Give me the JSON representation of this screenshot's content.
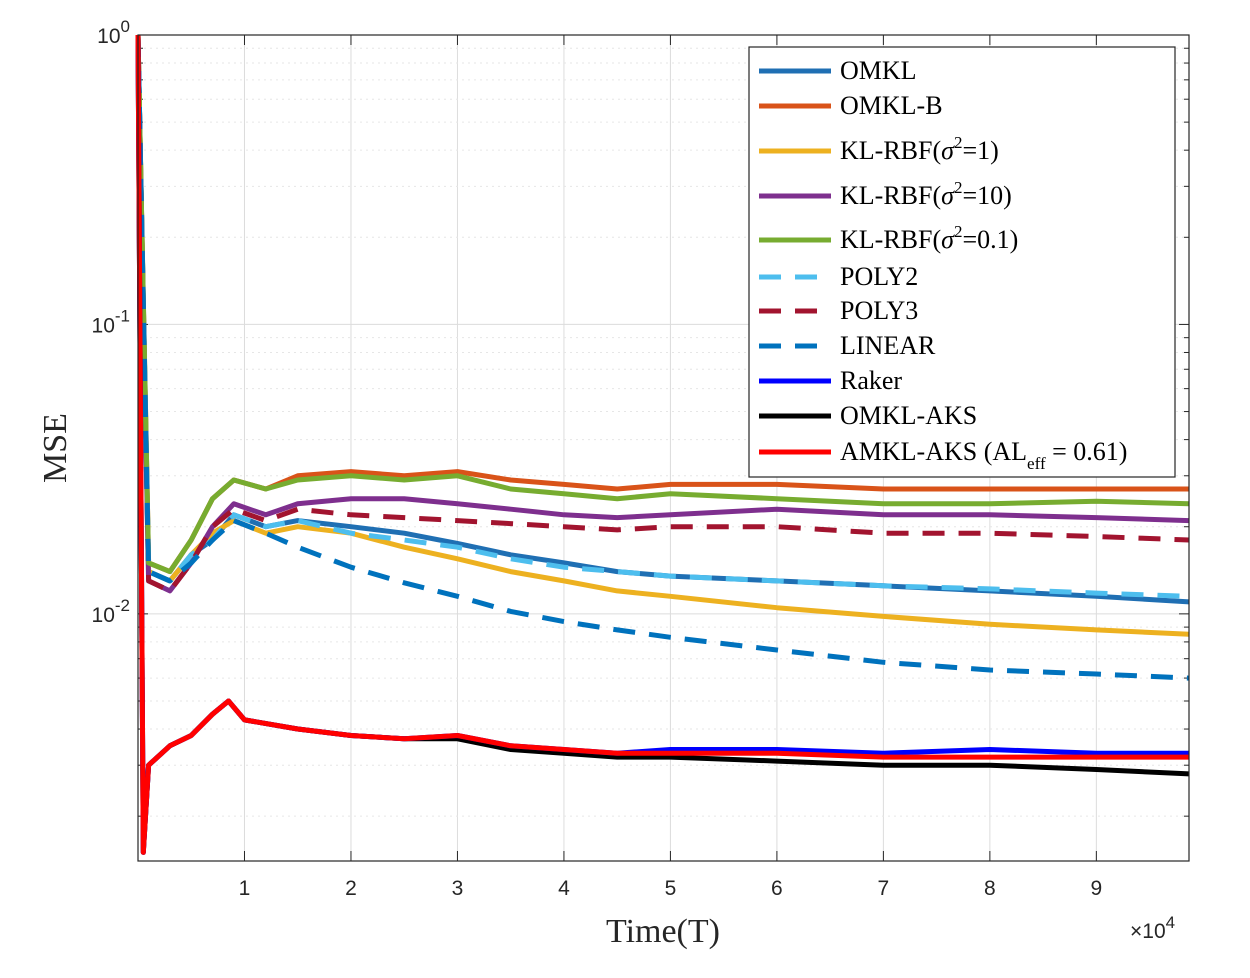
{
  "chart_data": {
    "type": "line",
    "title": "",
    "xlabel": "Time(T)",
    "ylabel": "MSE",
    "x_multiplier_label": "×10",
    "x_multiplier_exponent": "4",
    "xscale": "linear",
    "yscale": "log",
    "xlim": [
      0,
      9.87
    ],
    "ylim": [
      0.0014,
      1
    ],
    "xticks": [
      1,
      2,
      3,
      4,
      5,
      6,
      7,
      8,
      9
    ],
    "xtick_labels": [
      "1",
      "2",
      "3",
      "4",
      "5",
      "6",
      "7",
      "8",
      "9"
    ],
    "yticks": [
      {
        "value": 1,
        "base": "10",
        "exp": "0"
      },
      {
        "value": 0.1,
        "base": "10",
        "exp": "-1"
      },
      {
        "value": 0.01,
        "base": "10",
        "exp": "-2"
      }
    ],
    "grid": true,
    "legend_position": "top-right",
    "series": [
      {
        "name": "OMKL",
        "label_parts": [
          "OMKL"
        ],
        "color": "#1f6fb3",
        "dash": "solid",
        "x": [
          0,
          0.1,
          0.3,
          0.5,
          0.7,
          0.9,
          1.2,
          1.5,
          2,
          2.5,
          3,
          3.5,
          4,
          4.5,
          5,
          6,
          7,
          8,
          9,
          9.87
        ],
        "y": [
          1,
          0.014,
          0.013,
          0.016,
          0.018,
          0.022,
          0.02,
          0.021,
          0.02,
          0.019,
          0.0175,
          0.016,
          0.015,
          0.014,
          0.0135,
          0.013,
          0.0125,
          0.012,
          0.0115,
          0.011
        ]
      },
      {
        "name": "OMKL-B",
        "label_parts": [
          "OMKL-B"
        ],
        "color": "#d95319",
        "dash": "solid",
        "x": [
          0,
          0.1,
          0.3,
          0.5,
          0.7,
          0.9,
          1.2,
          1.5,
          2,
          2.5,
          3,
          3.5,
          4,
          4.5,
          5,
          6,
          7,
          8,
          9,
          9.87
        ],
        "y": [
          1,
          0.015,
          0.014,
          0.018,
          0.025,
          0.029,
          0.027,
          0.03,
          0.031,
          0.03,
          0.031,
          0.029,
          0.028,
          0.027,
          0.028,
          0.028,
          0.027,
          0.027,
          0.027,
          0.027
        ]
      },
      {
        "name": "KL-RBF(σ2=1)",
        "label_parts": [
          "KL-RBF(",
          "σ",
          "2",
          "=1)"
        ],
        "color": "#edb120",
        "dash": "solid",
        "x": [
          0,
          0.1,
          0.3,
          0.5,
          0.7,
          0.9,
          1.2,
          1.5,
          2,
          2.5,
          3,
          3.5,
          4,
          4.5,
          5,
          6,
          7,
          8,
          9,
          9.87
        ],
        "y": [
          1,
          0.014,
          0.013,
          0.016,
          0.019,
          0.021,
          0.019,
          0.02,
          0.019,
          0.017,
          0.0155,
          0.014,
          0.013,
          0.012,
          0.0115,
          0.0105,
          0.0098,
          0.0092,
          0.0088,
          0.0085
        ]
      },
      {
        "name": "KL-RBF(σ2=10)",
        "label_parts": [
          "KL-RBF(",
          "σ",
          "2",
          "=10)"
        ],
        "color": "#7e2f8e",
        "dash": "solid",
        "x": [
          0,
          0.1,
          0.3,
          0.5,
          0.7,
          0.9,
          1.2,
          1.5,
          2,
          2.5,
          3,
          3.5,
          4,
          4.5,
          5,
          6,
          7,
          8,
          9,
          9.87
        ],
        "y": [
          1,
          0.013,
          0.012,
          0.015,
          0.02,
          0.024,
          0.022,
          0.024,
          0.025,
          0.025,
          0.024,
          0.023,
          0.022,
          0.0215,
          0.022,
          0.023,
          0.022,
          0.022,
          0.0215,
          0.021
        ]
      },
      {
        "name": "KL-RBF(σ2=0.1)",
        "label_parts": [
          "KL-RBF(",
          "σ",
          "2",
          "=0.1)"
        ],
        "color": "#77ac30",
        "dash": "solid",
        "x": [
          0,
          0.1,
          0.3,
          0.5,
          0.7,
          0.9,
          1.2,
          1.5,
          2,
          2.5,
          3,
          3.5,
          4,
          4.5,
          5,
          6,
          7,
          8,
          9,
          9.87
        ],
        "y": [
          1,
          0.015,
          0.014,
          0.018,
          0.025,
          0.029,
          0.027,
          0.029,
          0.03,
          0.029,
          0.03,
          0.027,
          0.026,
          0.025,
          0.026,
          0.025,
          0.024,
          0.024,
          0.0245,
          0.024
        ]
      },
      {
        "name": "POLY2",
        "label_parts": [
          "POLY2"
        ],
        "color": "#4dbeee",
        "dash": "dashed",
        "x": [
          0,
          0.1,
          0.3,
          0.5,
          0.7,
          0.9,
          1.2,
          1.5,
          2,
          2.5,
          3,
          3.5,
          4,
          4.5,
          5,
          6,
          7,
          8,
          9,
          9.87
        ],
        "y": [
          1,
          0.014,
          0.013,
          0.016,
          0.018,
          0.022,
          0.02,
          0.021,
          0.019,
          0.018,
          0.017,
          0.0155,
          0.0145,
          0.014,
          0.0135,
          0.013,
          0.0125,
          0.0122,
          0.0118,
          0.0115
        ]
      },
      {
        "name": "POLY3",
        "label_parts": [
          "POLY3"
        ],
        "color": "#a2142f",
        "dash": "dashed",
        "x": [
          0,
          0.1,
          0.3,
          0.5,
          0.7,
          0.9,
          1.2,
          1.5,
          2,
          2.5,
          3,
          3.5,
          4,
          4.5,
          5,
          6,
          7,
          8,
          9,
          9.87
        ],
        "y": [
          1,
          0.013,
          0.012,
          0.015,
          0.02,
          0.023,
          0.021,
          0.023,
          0.022,
          0.0215,
          0.021,
          0.0205,
          0.02,
          0.0195,
          0.02,
          0.02,
          0.019,
          0.019,
          0.0185,
          0.018
        ]
      },
      {
        "name": "LINEAR",
        "label_parts": [
          "LINEAR"
        ],
        "color": "#0072bd",
        "dash": "dashed",
        "x": [
          0,
          0.1,
          0.3,
          0.5,
          0.7,
          0.9,
          1.2,
          1.5,
          2,
          2.5,
          3,
          3.5,
          4,
          4.5,
          5,
          6,
          7,
          8,
          9,
          9.87
        ],
        "y": [
          1,
          0.014,
          0.013,
          0.015,
          0.018,
          0.021,
          0.019,
          0.017,
          0.0145,
          0.0128,
          0.0115,
          0.0102,
          0.0094,
          0.0088,
          0.0083,
          0.0075,
          0.0068,
          0.0064,
          0.0062,
          0.006
        ]
      },
      {
        "name": "Raker",
        "label_parts": [
          "Raker"
        ],
        "color": "#0000ff",
        "dash": "solid",
        "x": [
          0,
          0.05,
          0.1,
          0.3,
          0.5,
          0.7,
          0.85,
          1.0,
          1.5,
          2,
          2.5,
          3,
          3.5,
          4,
          4.5,
          5,
          6,
          7,
          8,
          9,
          9.87
        ],
        "y": [
          1,
          0.0015,
          0.003,
          0.0035,
          0.0038,
          0.0045,
          0.005,
          0.0043,
          0.004,
          0.0038,
          0.0037,
          0.0038,
          0.0035,
          0.0034,
          0.0033,
          0.0034,
          0.0034,
          0.0033,
          0.0034,
          0.0033,
          0.0033
        ]
      },
      {
        "name": "OMKL-AKS",
        "label_parts": [
          "OMKL-AKS"
        ],
        "color": "#000000",
        "dash": "solid",
        "x": [
          0,
          0.05,
          0.1,
          0.3,
          0.5,
          0.7,
          0.85,
          1.0,
          1.5,
          2,
          2.5,
          3,
          3.5,
          4,
          4.5,
          5,
          6,
          7,
          8,
          9,
          9.87
        ],
        "y": [
          1,
          0.0015,
          0.003,
          0.0035,
          0.0038,
          0.0045,
          0.005,
          0.0043,
          0.004,
          0.0038,
          0.0037,
          0.0037,
          0.0034,
          0.0033,
          0.0032,
          0.0032,
          0.0031,
          0.003,
          0.003,
          0.0029,
          0.0028
        ]
      },
      {
        "name": "AMKL-AKS (ALeff = 0.61)",
        "label_parts": [
          "AMKL-AKS (AL",
          "eff",
          " = 0.61)"
        ],
        "color": "#ff0000",
        "dash": "solid",
        "x": [
          0,
          0.05,
          0.1,
          0.3,
          0.5,
          0.7,
          0.85,
          1.0,
          1.5,
          2,
          2.5,
          3,
          3.5,
          4,
          4.5,
          5,
          6,
          7,
          8,
          9,
          9.87
        ],
        "y": [
          1,
          0.0015,
          0.003,
          0.0035,
          0.0038,
          0.0045,
          0.005,
          0.0043,
          0.004,
          0.0038,
          0.0037,
          0.0038,
          0.0035,
          0.0034,
          0.0033,
          0.0033,
          0.0033,
          0.0032,
          0.0032,
          0.0032,
          0.0032
        ]
      }
    ]
  }
}
